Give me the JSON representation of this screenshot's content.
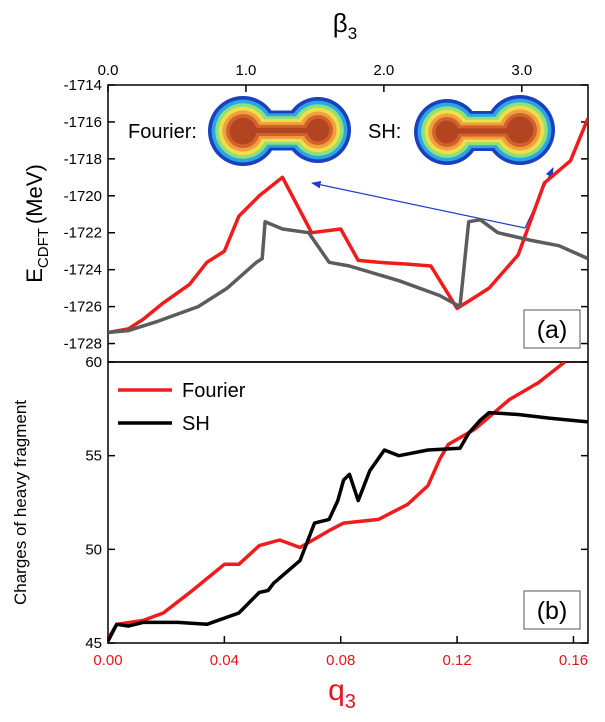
{
  "chart_data": [
    {
      "type": "line",
      "top_axis": {
        "label": "β",
        "label_sub": "3",
        "lim": [
          0,
          3.48
        ],
        "ticks": [
          {
            "value": 0,
            "label": "0.0"
          },
          {
            "value": 1,
            "label": "1.0"
          },
          {
            "value": 2,
            "label": "2.0"
          },
          {
            "value": 3,
            "label": "3.0"
          }
        ]
      },
      "ylabel": {
        "main": "E",
        "sub": "CDFT",
        "unit": "(MeV)"
      },
      "xlim": [
        0,
        0.165
      ],
      "ylim": [
        -1729,
        -1714
      ],
      "yticks": [
        -1728,
        -1726,
        -1724,
        -1722,
        -1720,
        -1718,
        -1716,
        -1714
      ],
      "panel_label": "(a)",
      "annotations": [
        "Fourier:",
        "SH:"
      ],
      "series": [
        {
          "color": "#f01c1c",
          "x": [
            0,
            0.007,
            0.012,
            0.019,
            0.028,
            0.034,
            0.04,
            0.045,
            0.052,
            0.06,
            0.07,
            0.08,
            0.086,
            0.093,
            0.103,
            0.111,
            0.12,
            0.124,
            0.131,
            0.141,
            0.15,
            0.159,
            0.165
          ],
          "values": [
            -1727.4,
            -1727.2,
            -1726.7,
            -1725.8,
            -1724.8,
            -1723.6,
            -1723.0,
            -1721.1,
            -1720.0,
            -1719.0,
            -1722.0,
            -1721.8,
            -1723.5,
            -1723.6,
            -1723.7,
            -1723.8,
            -1726.1,
            -1725.7,
            -1725.0,
            -1723.2,
            -1719.3,
            -1718.1,
            -1715.8
          ]
        },
        {
          "color": "#5c5c5c",
          "x": [
            0,
            0.007,
            0.017,
            0.031,
            0.041,
            0.051,
            0.053,
            0.054,
            0.06,
            0.069,
            0.076,
            0.083,
            0.1,
            0.114,
            0.121,
            0.124,
            0.128,
            0.134,
            0.145,
            0.155,
            0.165
          ],
          "values": [
            -1727.4,
            -1727.3,
            -1726.8,
            -1726.0,
            -1725.0,
            -1723.6,
            -1723.4,
            -1721.4,
            -1721.8,
            -1722.0,
            -1723.6,
            -1723.8,
            -1724.6,
            -1725.4,
            -1726.0,
            -1721.4,
            -1721.3,
            -1722.0,
            -1722.4,
            -1722.7,
            -1723.4
          ]
        }
      ]
    },
    {
      "type": "line",
      "xlabel": {
        "main": "q",
        "sub": "3"
      },
      "xaxis_color": "#e8141c",
      "xlim": [
        0,
        0.165
      ],
      "xticks": [
        {
          "value": 0,
          "label": "0.00"
        },
        {
          "value": 0.04,
          "label": "0.04"
        },
        {
          "value": 0.08,
          "label": "0.08"
        },
        {
          "value": 0.12,
          "label": "0.12"
        },
        {
          "value": 0.16,
          "label": "0.16"
        }
      ],
      "ylim": [
        45,
        60
      ],
      "yticks": [
        45,
        50,
        55,
        60
      ],
      "ylabel": "Charges of heavy fragment",
      "panel_label": "(b)",
      "legend": "upper left",
      "series": [
        {
          "name": "Fourier",
          "color": "#f01c1c",
          "x": [
            0,
            0.003,
            0.012,
            0.019,
            0.029,
            0.04,
            0.045,
            0.052,
            0.059,
            0.066,
            0.076,
            0.081,
            0.093,
            0.103,
            0.11,
            0.114,
            0.117,
            0.126,
            0.138,
            0.148,
            0.157
          ],
          "values": [
            45.2,
            46.0,
            46.2,
            46.6,
            47.8,
            49.2,
            49.2,
            50.2,
            50.5,
            50.1,
            51.0,
            51.4,
            51.6,
            52.4,
            53.4,
            54.8,
            55.6,
            56.4,
            58.0,
            58.9,
            60.0
          ]
        },
        {
          "name": "SH",
          "color": "#000000",
          "x": [
            0,
            0.003,
            0.007,
            0.012,
            0.024,
            0.034,
            0.045,
            0.052,
            0.055,
            0.057,
            0.066,
            0.071,
            0.076,
            0.079,
            0.081,
            0.083,
            0.086,
            0.09,
            0.095,
            0.1,
            0.11,
            0.121,
            0.124,
            0.128,
            0.131,
            0.141,
            0.152,
            0.165
          ],
          "values": [
            45.1,
            46.0,
            45.9,
            46.1,
            46.1,
            46.0,
            46.6,
            47.7,
            47.8,
            48.2,
            49.4,
            51.4,
            51.6,
            52.6,
            53.7,
            54.0,
            52.6,
            54.2,
            55.3,
            55.0,
            55.3,
            55.4,
            56.2,
            56.9,
            57.3,
            57.2,
            57.0,
            56.8
          ]
        }
      ]
    }
  ]
}
